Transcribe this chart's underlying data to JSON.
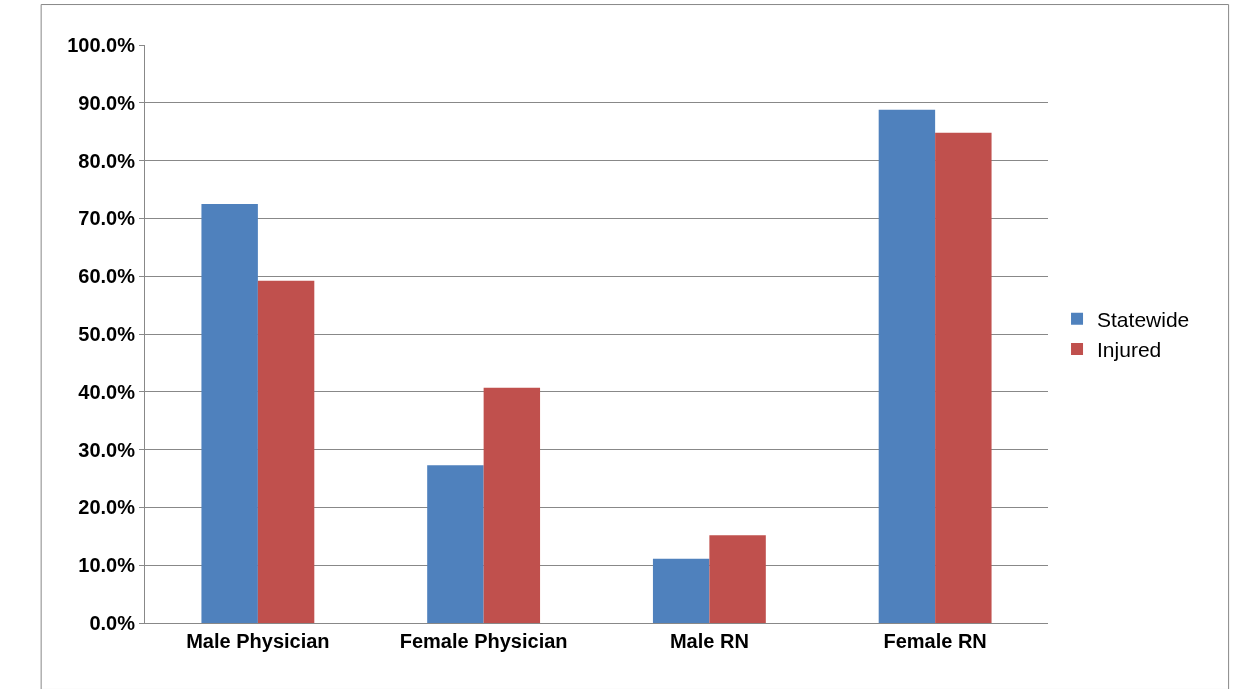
{
  "chart_data": {
    "type": "bar",
    "categories": [
      "Male Physician",
      "Female Physician",
      "Male RN",
      "Female RN"
    ],
    "series": [
      {
        "name": "Statewide",
        "color": "#4f81bd",
        "values": [
          72.5,
          27.3,
          11.1,
          88.8
        ]
      },
      {
        "name": "Injured",
        "color": "#c0504d",
        "values": [
          59.2,
          40.7,
          15.2,
          84.8
        ]
      }
    ],
    "ylim": [
      0,
      100
    ],
    "yticks": [
      {
        "value": 0,
        "label": "0.0%"
      },
      {
        "value": 10,
        "label": "10.0%"
      },
      {
        "value": 20,
        "label": "20.0%"
      },
      {
        "value": 30,
        "label": "30.0%"
      },
      {
        "value": 40,
        "label": "40.0%"
      },
      {
        "value": 50,
        "label": "50.0%"
      },
      {
        "value": 60,
        "label": "60.0%"
      },
      {
        "value": 70,
        "label": "70.0%"
      },
      {
        "value": 80,
        "label": "80.0%"
      },
      {
        "value": 90,
        "label": "90.0%"
      },
      {
        "value": 100,
        "label": "100.0%"
      }
    ],
    "grid": "y",
    "legend": "right"
  }
}
